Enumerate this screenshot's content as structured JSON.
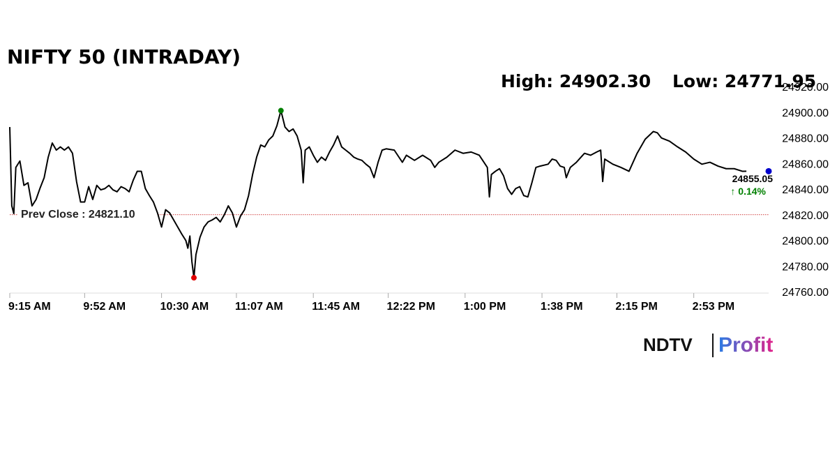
{
  "chart_data": {
    "type": "line",
    "title": "NIFTY 50 (INTRADAY)",
    "stats": [
      "High: 24902.30",
      "Low: 24771.95"
    ],
    "x": [
      "9:15 AM",
      "9:16 AM",
      "9:17 AM",
      "9:18 AM",
      "9:20 AM",
      "9:22 AM",
      "9:24 AM",
      "9:26 AM",
      "9:28 AM",
      "9:30 AM",
      "9:32 AM",
      "9:34 AM",
      "9:36 AM",
      "9:38 AM",
      "9:40 AM",
      "9:42 AM",
      "9:44 AM",
      "9:46 AM",
      "9:48 AM",
      "9:50 AM",
      "9:52 AM",
      "9:54 AM",
      "9:56 AM",
      "9:58 AM",
      "10:00 AM",
      "10:02 AM",
      "10:04 AM",
      "10:06 AM",
      "10:08 AM",
      "10:10 AM",
      "10:12 AM",
      "10:14 AM",
      "10:16 AM",
      "10:18 AM",
      "10:20 AM",
      "10:22 AM",
      "10:24 AM",
      "10:26 AM",
      "10:28 AM",
      "10:30 AM",
      "10:32 AM",
      "10:34 AM",
      "10:36 AM",
      "10:38 AM",
      "10:40 AM",
      "10:42 AM",
      "10:43 AM",
      "10:44 AM",
      "10:45 AM",
      "10:46 AM",
      "10:47 AM",
      "10:49 AM",
      "10:51 AM",
      "10:53 AM",
      "10:55 AM",
      "10:57 AM",
      "10:59 AM",
      "11:01 AM",
      "11:03 AM",
      "11:05 AM",
      "11:07 AM",
      "11:09 AM",
      "11:11 AM",
      "11:13 AM",
      "11:15 AM",
      "11:17 AM",
      "11:19 AM",
      "11:21 AM",
      "11:23 AM",
      "11:25 AM",
      "11:27 AM",
      "11:29 AM",
      "11:31 AM",
      "11:33 AM",
      "11:35 AM",
      "11:37 AM",
      "11:39 AM",
      "11:40 AM",
      "11:41 AM",
      "11:43 AM",
      "11:45 AM",
      "11:47 AM",
      "11:49 AM",
      "11:51 AM",
      "11:53 AM",
      "11:55 AM",
      "11:57 AM",
      "11:59 AM",
      "12:01 PM",
      "12:03 PM",
      "12:05 PM",
      "12:07 PM",
      "12:09 PM",
      "12:11 PM",
      "12:13 PM",
      "12:15 PM",
      "12:17 PM",
      "12:19 PM",
      "12:21 PM",
      "12:25 PM",
      "12:29 PM",
      "12:31 PM",
      "12:35 PM",
      "12:39 PM",
      "12:43 PM",
      "12:45 PM",
      "12:47 PM",
      "12:51 PM",
      "12:55 PM",
      "12:59 PM",
      "1:03 PM",
      "1:07 PM",
      "1:11 PM",
      "1:12 PM",
      "1:13 PM",
      "1:15 PM",
      "1:17 PM",
      "1:19 PM",
      "1:21 PM",
      "1:23 PM",
      "1:25 PM",
      "1:27 PM",
      "1:29 PM",
      "1:31 PM",
      "1:33 PM",
      "1:35 PM",
      "1:37 PM",
      "1:41 PM",
      "1:43 PM",
      "1:45 PM",
      "1:47 PM",
      "1:49 PM",
      "1:50 PM",
      "1:52 PM",
      "1:55 PM",
      "1:59 PM",
      "2:02 PM",
      "2:05 PM",
      "2:07 PM",
      "2:08 PM",
      "2:09 PM",
      "2:13 PM",
      "2:17 PM",
      "2:21 PM",
      "2:25 PM",
      "2:29 PM",
      "2:33 PM",
      "2:35 PM",
      "2:37 PM",
      "2:41 PM",
      "2:45 PM",
      "2:49 PM",
      "2:53 PM",
      "2:57 PM",
      "3:01 PM",
      "3:05 PM",
      "3:09 PM",
      "3:13 PM",
      "3:17 PM",
      "3:19 PM"
    ],
    "series": [
      {
        "color": "#000000",
        "values": [
          24889.5,
          24828,
          24822,
          24858,
          24863,
          24844,
          24846,
          24828,
          24833,
          24842,
          24850,
          24866,
          24877,
          24871.5,
          24874,
          24871.5,
          24874,
          24869,
          24847,
          24831,
          24831,
          24843,
          24833,
          24844,
          24840.5,
          24841.5,
          24844,
          24840.5,
          24839,
          24843,
          24841.5,
          24839,
          24848,
          24855,
          24855,
          24841.5,
          24836,
          24831,
          24822.5,
          24811.5,
          24825,
          24822.5,
          24817,
          24811.5,
          24806,
          24801,
          24795,
          24804.5,
          24784.5,
          24771.95,
          24790,
          24803.5,
          24811.5,
          24815.5,
          24817,
          24819,
          24815.5,
          24821,
          24828,
          24822.5,
          24811.5,
          24820,
          24825,
          24836,
          24852.5,
          24866,
          24875.5,
          24874,
          24879.5,
          24882.5,
          24890.5,
          24902.3,
          24889.5,
          24886,
          24888,
          24882.5,
          24871.5,
          24846,
          24871.5,
          24874,
          24867.5,
          24862,
          24866,
          24863.5,
          24870,
          24875.5,
          24882.5,
          24874,
          24871.5,
          24869,
          24866,
          24864.5,
          24863.5,
          24860.5,
          24858,
          24850,
          24862,
          24871.5,
          24872.5,
          24871.5,
          24862,
          24867.5,
          24863.5,
          24867.5,
          24863.5,
          24858,
          24862,
          24866,
          24871.5,
          24869,
          24870,
          24867.5,
          24858,
          24835,
          24852.5,
          24855,
          24857,
          24851.5,
          24841.5,
          24837,
          24841.5,
          24843,
          24836,
          24835,
          24846,
          24858,
          24859,
          24860.5,
          24864.5,
          24863.5,
          24859,
          24858,
          24850,
          24858,
          24862,
          24869,
          24867.5,
          24870,
          24871.5,
          24847,
          24864.5,
          24860.5,
          24858,
          24855,
          24869,
          24880,
          24886,
          24885,
          24881,
          24878.5,
          24874,
          24870,
          24864.5,
          24860.5,
          24862,
          24859,
          24857,
          24857,
          24855,
          24855.05
        ]
      }
    ],
    "last_label": "24855.05",
    "change": 0.14,
    "change_label": "↑ 0.14%",
    "reference_line": {
      "label": "Prev Close : 24821.10",
      "value": 24821.1,
      "color": "#c00000"
    },
    "marker_colors": {
      "high": "#008000",
      "low": "#e00000",
      "last": "#0000cc"
    },
    "change_color": "#008000",
    "xlim": [
      "9:15 AM",
      "3:30 PM"
    ],
    "xticks": [
      "9:15 AM",
      "9:52 AM",
      "10:30 AM",
      "11:07 AM",
      "11:45 AM",
      "12:22 PM",
      "1:00 PM",
      "1:38 PM",
      "2:15 PM",
      "2:53 PM"
    ],
    "ylim": [
      24760,
      24920
    ],
    "yticks": [
      {
        "value": 24760,
        "label": "24760.00"
      },
      {
        "value": 24780,
        "label": "24780.00"
      },
      {
        "value": 24800,
        "label": "24800.00"
      },
      {
        "value": 24820,
        "label": "24820.00"
      },
      {
        "value": 24840,
        "label": "24840.00"
      },
      {
        "value": 24860,
        "label": "24860.00"
      },
      {
        "value": 24880,
        "label": "24880.00"
      },
      {
        "value": 24900,
        "label": "24900.00"
      },
      {
        "value": 24920,
        "label": "24920.00"
      }
    ]
  },
  "logo": [
    "NDTV",
    "Profit"
  ]
}
